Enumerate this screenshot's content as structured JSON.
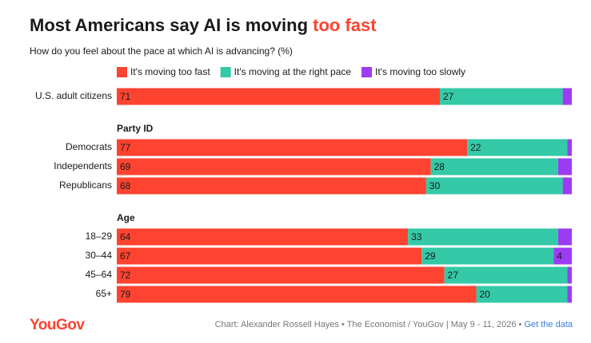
{
  "chart_data": {
    "type": "bar",
    "orientation": "horizontal",
    "stacked": true,
    "title_parts": [
      "Most Americans say AI is moving ",
      "too fast"
    ],
    "title_highlight_color": "#ff4331",
    "subtitle": "How do you feel about the pace at which AI is advancing? (%)",
    "categories": [
      "U.S. adult citizens",
      "Democrats",
      "Independents",
      "Republicans",
      "18–29",
      "30–44",
      "45–64",
      "65+"
    ],
    "group_labels": [
      null,
      "Party ID",
      null,
      null,
      "Age",
      null,
      null,
      null
    ],
    "series": [
      {
        "name": "It's moving too fast",
        "color": "#ff4331",
        "label_color": "#ffffff",
        "values": [
          71,
          77,
          69,
          68,
          64,
          67,
          72,
          79
        ]
      },
      {
        "name": "It's moving at the right pace",
        "color": "#34c9a7",
        "label_color": "#1a1a1a",
        "values": [
          27,
          22,
          28,
          30,
          33,
          29,
          27,
          20
        ]
      },
      {
        "name": "It's moving too slowly",
        "color": "#9b3cf2",
        "label_color": "#ffffff",
        "values": [
          2,
          1,
          3,
          2,
          3,
          4,
          1,
          1
        ]
      }
    ],
    "xlim": [
      0,
      100
    ],
    "logo": "YouGov",
    "credit": "Chart: Alexander Rossell Hayes • The Economist / YouGov | May 9 - 11, 2026 •",
    "link": "Get the data"
  }
}
